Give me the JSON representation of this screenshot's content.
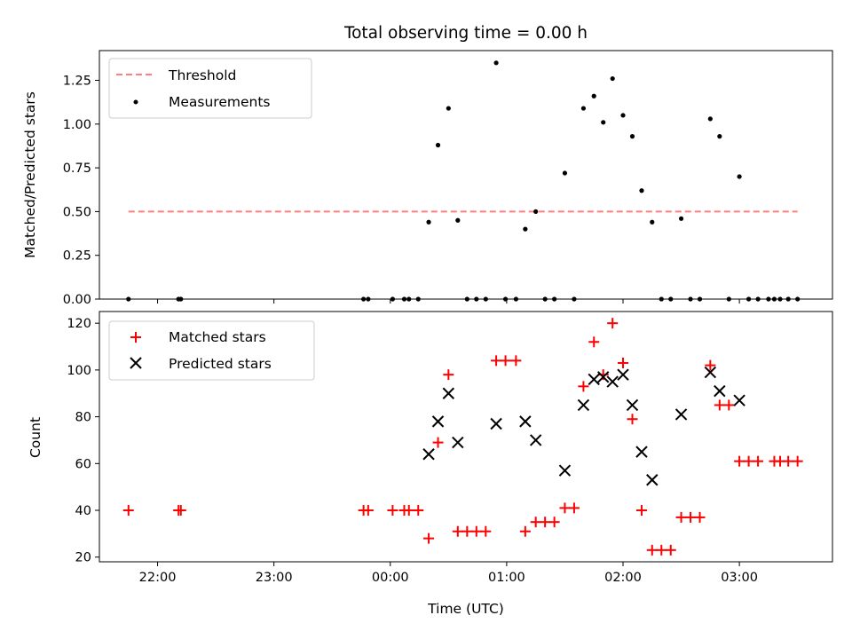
{
  "chart_data": [
    {
      "type": "scatter",
      "title": "Total observing time = 0.00 h",
      "xlabel": "",
      "ylabel": "Matched/Predicted stars",
      "x_range": [
        -2.5,
        3.8
      ],
      "ylim": [
        0,
        1.42
      ],
      "yticks": [
        0,
        0.25,
        0.5,
        0.75,
        1.0,
        1.25
      ],
      "ytick_labels": [
        "0.00",
        "0.25",
        "0.50",
        "0.75",
        "1.00",
        "1.25"
      ],
      "grid": false,
      "legend_position": "upper-left",
      "threshold": {
        "name": "Threshold",
        "y": 0.5,
        "x": [
          -2.25,
          3.5
        ],
        "color": "#ff7f7f",
        "style": "dashed"
      },
      "series": [
        {
          "name": "Measurements",
          "color": "#000000",
          "marker": "dot",
          "points": [
            [
              -2.25,
              0
            ],
            [
              -1.82,
              0
            ],
            [
              -1.8,
              0
            ],
            [
              -0.23,
              0
            ],
            [
              -0.19,
              0
            ],
            [
              0.02,
              0
            ],
            [
              0.12,
              0
            ],
            [
              0.16,
              0
            ],
            [
              0.24,
              0
            ],
            [
              0.33,
              0.44
            ],
            [
              0.41,
              0.88
            ],
            [
              0.5,
              1.09
            ],
            [
              0.58,
              0.45
            ],
            [
              0.66,
              0
            ],
            [
              0.74,
              0
            ],
            [
              0.82,
              0
            ],
            [
              0.91,
              1.35
            ],
            [
              0.99,
              0
            ],
            [
              1.08,
              0
            ],
            [
              1.16,
              0.4
            ],
            [
              1.25,
              0.5
            ],
            [
              1.33,
              0
            ],
            [
              1.41,
              0
            ],
            [
              1.5,
              0.72
            ],
            [
              1.58,
              0
            ],
            [
              1.66,
              1.09
            ],
            [
              1.75,
              1.16
            ],
            [
              1.83,
              1.01
            ],
            [
              1.91,
              1.26
            ],
            [
              2.0,
              1.05
            ],
            [
              2.08,
              0.93
            ],
            [
              2.16,
              0.62
            ],
            [
              2.25,
              0.44
            ],
            [
              2.33,
              0
            ],
            [
              2.41,
              0
            ],
            [
              2.5,
              0.46
            ],
            [
              2.58,
              0
            ],
            [
              2.66,
              0
            ],
            [
              2.75,
              1.03
            ],
            [
              2.83,
              0.93
            ],
            [
              2.91,
              0
            ],
            [
              3.0,
              0.7
            ],
            [
              3.08,
              0
            ],
            [
              3.16,
              0
            ],
            [
              3.25,
              0
            ],
            [
              3.3,
              0
            ],
            [
              3.35,
              0
            ],
            [
              3.42,
              0
            ],
            [
              3.5,
              0
            ]
          ]
        }
      ]
    },
    {
      "type": "scatter",
      "title": "",
      "xlabel": "Time (UTC)",
      "ylabel": "Count",
      "x_range": [
        -2.5,
        3.8
      ],
      "xticks": [
        -2,
        -1,
        0,
        1,
        2,
        3
      ],
      "xtick_labels": [
        "22:00",
        "23:00",
        "00:00",
        "01:00",
        "02:00",
        "03:00"
      ],
      "ylim": [
        18,
        125
      ],
      "yticks": [
        20,
        40,
        60,
        80,
        100,
        120
      ],
      "ytick_labels": [
        "20",
        "40",
        "60",
        "80",
        "100",
        "120"
      ],
      "grid": false,
      "legend_position": "upper-left",
      "series": [
        {
          "name": "Matched stars",
          "color": "#ff0000",
          "marker": "plus",
          "points": [
            [
              -2.25,
              40
            ],
            [
              -1.82,
              40
            ],
            [
              -1.8,
              40
            ],
            [
              -0.23,
              40
            ],
            [
              -0.19,
              40
            ],
            [
              0.02,
              40
            ],
            [
              0.12,
              40
            ],
            [
              0.16,
              40
            ],
            [
              0.24,
              40
            ],
            [
              0.33,
              28
            ],
            [
              0.41,
              69
            ],
            [
              0.5,
              98
            ],
            [
              0.58,
              31
            ],
            [
              0.66,
              31
            ],
            [
              0.74,
              31
            ],
            [
              0.82,
              31
            ],
            [
              0.91,
              104
            ],
            [
              0.99,
              104
            ],
            [
              1.08,
              104
            ],
            [
              1.16,
              31
            ],
            [
              1.25,
              35
            ],
            [
              1.33,
              35
            ],
            [
              1.41,
              35
            ],
            [
              1.5,
              41
            ],
            [
              1.58,
              41
            ],
            [
              1.66,
              93
            ],
            [
              1.75,
              112
            ],
            [
              1.83,
              98
            ],
            [
              1.91,
              120
            ],
            [
              2.0,
              103
            ],
            [
              2.08,
              79
            ],
            [
              2.16,
              40
            ],
            [
              2.25,
              23
            ],
            [
              2.33,
              23
            ],
            [
              2.41,
              23
            ],
            [
              2.5,
              37
            ],
            [
              2.58,
              37
            ],
            [
              2.66,
              37
            ],
            [
              2.75,
              102
            ],
            [
              2.83,
              85
            ],
            [
              2.91,
              85
            ],
            [
              3.0,
              61
            ],
            [
              3.08,
              61
            ],
            [
              3.16,
              61
            ],
            [
              3.3,
              61
            ],
            [
              3.35,
              61
            ],
            [
              3.42,
              61
            ],
            [
              3.5,
              61
            ]
          ]
        },
        {
          "name": "Predicted stars",
          "color": "#000000",
          "marker": "x",
          "points": [
            [
              0.33,
              64
            ],
            [
              0.41,
              78
            ],
            [
              0.5,
              90
            ],
            [
              0.58,
              69
            ],
            [
              0.91,
              77
            ],
            [
              1.16,
              78
            ],
            [
              1.25,
              70
            ],
            [
              1.5,
              57
            ],
            [
              1.66,
              85
            ],
            [
              1.75,
              96
            ],
            [
              1.83,
              97
            ],
            [
              1.91,
              95
            ],
            [
              2.0,
              98
            ],
            [
              2.08,
              85
            ],
            [
              2.16,
              65
            ],
            [
              2.25,
              53
            ],
            [
              2.5,
              81
            ],
            [
              2.75,
              99
            ],
            [
              2.83,
              91
            ],
            [
              3.0,
              87
            ]
          ]
        }
      ]
    }
  ]
}
